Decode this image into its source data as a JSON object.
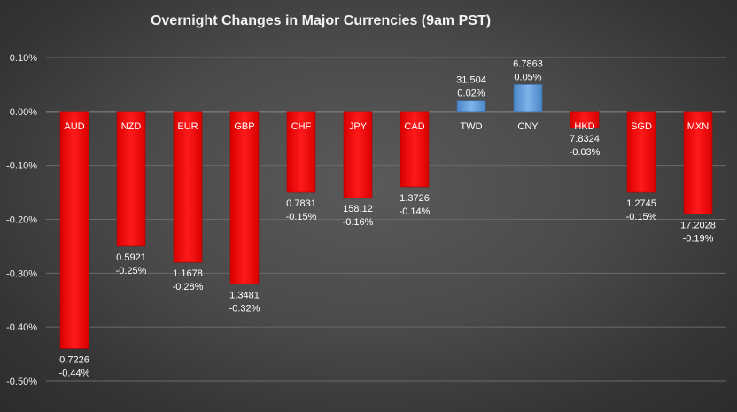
{
  "chart_data": {
    "type": "bar",
    "title": "Overnight Changes in Major Currencies (9am PST)",
    "categories": [
      "AUD",
      "NZD",
      "EUR",
      "GBP",
      "CHF",
      "JPY",
      "CAD",
      "TWD",
      "CNY",
      "HKD",
      "SGD",
      "MXN"
    ],
    "values": [
      -0.44,
      -0.25,
      -0.28,
      -0.32,
      -0.15,
      -0.16,
      -0.14,
      0.02,
      0.05,
      -0.03,
      -0.15,
      -0.19
    ],
    "rates": [
      "0.7226",
      "0.5921",
      "1.1678",
      "1.3481",
      "0.7831",
      "158.12",
      "1.3726",
      "31.504",
      "6.7863",
      "7.8324",
      "1.2745",
      "17.2028"
    ],
    "value_labels": [
      "-0.44%",
      "-0.25%",
      "-0.28%",
      "-0.32%",
      "-0.15%",
      "-0.16%",
      "-0.14%",
      "0.02%",
      "0.05%",
      "-0.03%",
      "-0.15%",
      "-0.19%"
    ],
    "yticks": [
      0.1,
      0.0,
      -0.1,
      -0.2,
      -0.3,
      -0.4,
      -0.5
    ],
    "ytick_labels": [
      "0.10%",
      "0.00%",
      "-0.10%",
      "-0.20%",
      "-0.30%",
      "-0.40%",
      "-0.50%"
    ],
    "ylim": [
      -0.5,
      0.1
    ],
    "xlabel": "",
    "ylabel": "",
    "grid": true,
    "colors": {
      "negative": "#ff0000",
      "positive": "#5b9bd5",
      "text": "#ffffff"
    }
  }
}
